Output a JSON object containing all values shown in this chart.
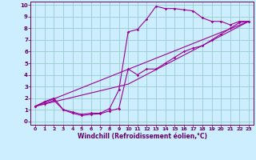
{
  "bg_color": "#cceeff",
  "grid_color": "#99cccc",
  "line_color": "#990099",
  "marker": "D",
  "markersize": 1.8,
  "linewidth": 0.8,
  "xlabel": "Windchill (Refroidissement éolien,°C)",
  "xlim": [
    -0.5,
    23.5
  ],
  "ylim": [
    -0.3,
    10.3
  ],
  "xticks": [
    0,
    1,
    2,
    3,
    4,
    5,
    6,
    7,
    8,
    9,
    10,
    11,
    12,
    13,
    14,
    15,
    16,
    17,
    18,
    19,
    20,
    21,
    22,
    23
  ],
  "yticks": [
    0,
    1,
    2,
    3,
    4,
    5,
    6,
    7,
    8,
    9,
    10
  ],
  "series1_x": [
    0,
    1,
    2,
    3,
    4,
    5,
    6,
    7,
    8,
    9,
    10,
    11,
    12,
    13,
    14,
    15,
    16,
    17,
    18,
    19,
    20,
    21,
    22,
    23
  ],
  "series1_y": [
    1.3,
    1.7,
    2.0,
    1.0,
    0.8,
    0.6,
    0.7,
    0.7,
    1.1,
    2.7,
    7.7,
    7.9,
    8.8,
    9.9,
    9.7,
    9.7,
    9.6,
    9.5,
    8.9,
    8.6,
    8.6,
    8.3,
    8.6,
    8.6
  ],
  "series2_x": [
    0,
    1,
    2,
    3,
    4,
    5,
    6,
    7,
    8,
    9,
    10,
    11,
    12,
    13,
    14,
    15,
    16,
    17,
    18,
    19,
    20,
    21,
    22,
    23
  ],
  "series2_y": [
    1.3,
    1.5,
    1.8,
    1.0,
    0.7,
    0.5,
    0.6,
    0.65,
    0.9,
    1.1,
    4.5,
    4.0,
    4.5,
    4.5,
    5.0,
    5.5,
    6.0,
    6.3,
    6.5,
    7.0,
    7.5,
    8.0,
    8.5,
    8.6
  ],
  "series3_x": [
    0,
    23
  ],
  "series3_y": [
    1.3,
    8.6
  ],
  "series4_x": [
    0,
    10,
    23
  ],
  "series4_y": [
    1.3,
    3.2,
    8.6
  ]
}
